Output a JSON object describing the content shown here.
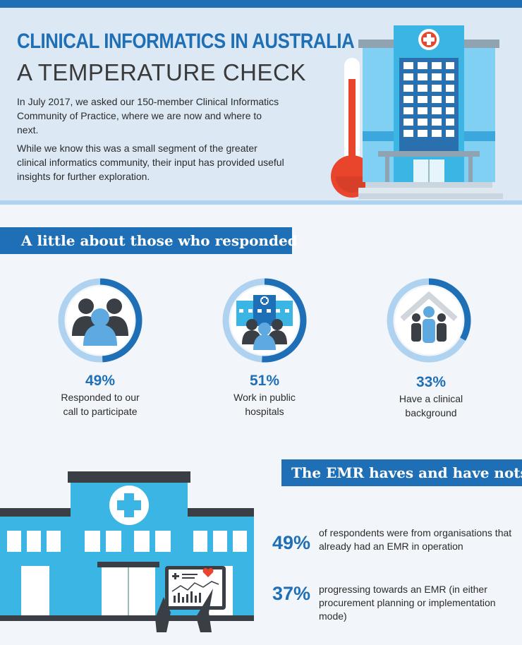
{
  "header": {
    "title_line1": "CLINICAL INFORMATICS IN AUSTRALIA",
    "title_line2": "A TEMPERATURE CHECK",
    "intro_p1": "In July 2017, we asked our 150-member Clinical Informatics Community of Practice, where we are now and where to next.",
    "intro_p2": "While we know this was a small segment of the greater clinical informatics community, their input has provided useful insights for further exploration."
  },
  "respondents": {
    "heading": "A little about those who responded",
    "stats": [
      {
        "percent": "49%",
        "label": "Responded to our call to participate",
        "fraction": 0.49,
        "icon": "people-group-icon"
      },
      {
        "percent": "51%",
        "label": "Work in public hospitals",
        "fraction": 0.51,
        "icon": "hospital-staff-icon"
      },
      {
        "percent": "33%",
        "label": "Have a clinical background",
        "fraction": 0.33,
        "icon": "home-family-icon"
      }
    ]
  },
  "emr": {
    "heading": "The EMR haves and have nots",
    "items": [
      {
        "percent": "49%",
        "text": "of respondents were from organisations that already had an EMR in operation"
      },
      {
        "percent": "37%",
        "text": "progressing towards an EMR (in either procurement planning or implementation mode)"
      }
    ]
  },
  "colors": {
    "primary": "#1f6fb6",
    "light_blue": "#aed2f0",
    "header_bg": "#dce9f4",
    "building_blue": "#3bb5e3",
    "thermometer_red": "#e8452c",
    "dark_icon": "#3a3f46"
  }
}
